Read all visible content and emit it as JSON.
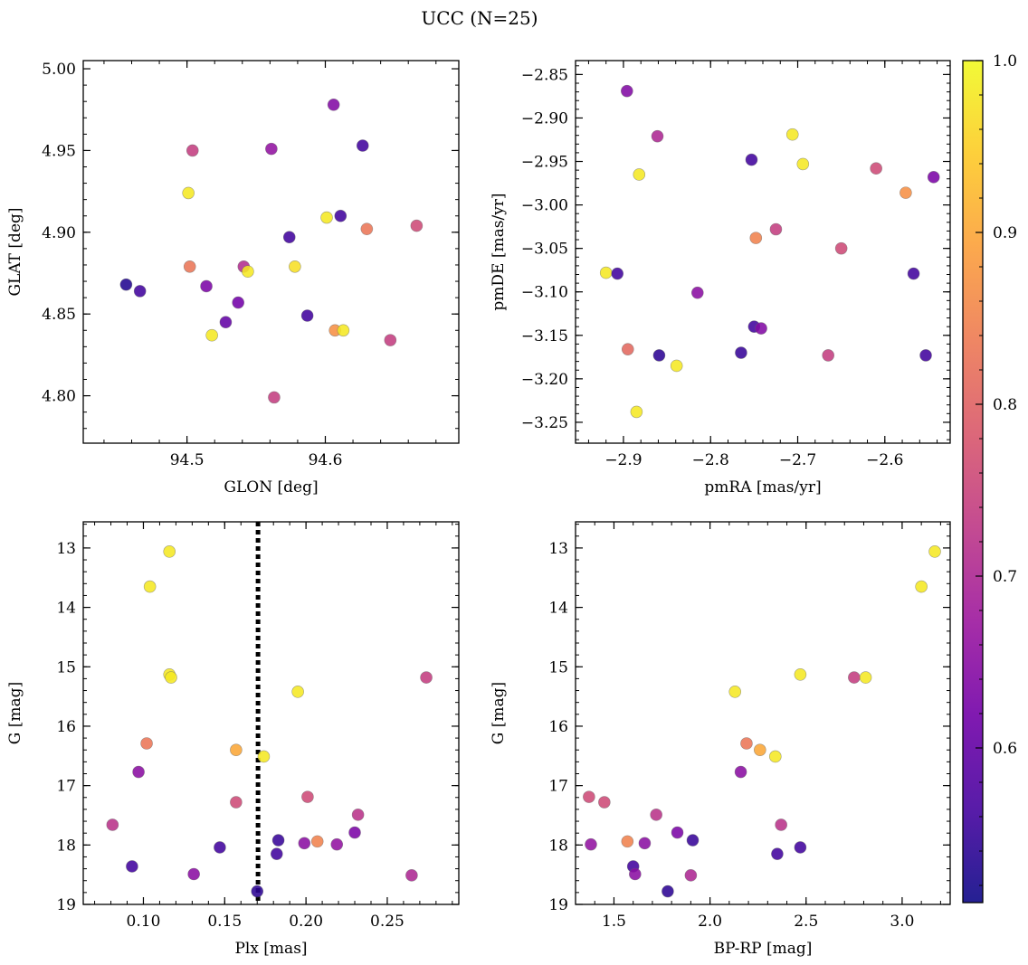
{
  "figure": {
    "title": "UCC (N=25)"
  },
  "colormap": [
    "#0d0887",
    "#46039f",
    "#7201a8",
    "#9c179e",
    "#bd3786",
    "#d8576b",
    "#ed7953",
    "#fb9f3a",
    "#fdca26",
    "#f0f921"
  ],
  "colorbar": {
    "min": 0.51,
    "max": 1.0,
    "ticks": [
      "0.6",
      "0.7",
      "0.8",
      "0.9",
      "1.0"
    ]
  },
  "chart_data": [
    {
      "type": "scatter",
      "xlabel": "GLON [deg]",
      "ylabel": "GLAT [deg]",
      "xlim": [
        94.425,
        94.6965
      ],
      "ylim": [
        4.771,
        5.005
      ],
      "xticks": [
        "94.5",
        "94.6"
      ],
      "yticks": [
        "4.80",
        "4.85",
        "4.90",
        "4.95",
        "5.00"
      ],
      "points": [
        {
          "x": 94.456,
          "y": 4.868,
          "c": 0.53
        },
        {
          "x": 94.466,
          "y": 4.864,
          "c": 0.56
        },
        {
          "x": 94.501,
          "y": 4.924,
          "c": 0.98
        },
        {
          "x": 94.502,
          "y": 4.879,
          "c": 0.83
        },
        {
          "x": 94.504,
          "y": 4.95,
          "c": 0.74
        },
        {
          "x": 94.514,
          "y": 4.867,
          "c": 0.63
        },
        {
          "x": 94.518,
          "y": 4.837,
          "c": 0.98
        },
        {
          "x": 94.528,
          "y": 4.845,
          "c": 0.6
        },
        {
          "x": 94.537,
          "y": 4.857,
          "c": 0.62
        },
        {
          "x": 94.541,
          "y": 4.879,
          "c": 0.71
        },
        {
          "x": 94.544,
          "y": 4.876,
          "c": 0.98
        },
        {
          "x": 94.561,
          "y": 4.951,
          "c": 0.66
        },
        {
          "x": 94.563,
          "y": 4.799,
          "c": 0.74
        },
        {
          "x": 94.574,
          "y": 4.897,
          "c": 0.56
        },
        {
          "x": 94.578,
          "y": 4.879,
          "c": 0.97
        },
        {
          "x": 94.587,
          "y": 4.849,
          "c": 0.56
        },
        {
          "x": 94.601,
          "y": 4.909,
          "c": 0.98
        },
        {
          "x": 94.606,
          "y": 4.978,
          "c": 0.64
        },
        {
          "x": 94.607,
          "y": 4.84,
          "c": 0.87
        },
        {
          "x": 94.611,
          "y": 4.91,
          "c": 0.56
        },
        {
          "x": 94.613,
          "y": 4.84,
          "c": 0.98
        },
        {
          "x": 94.627,
          "y": 4.953,
          "c": 0.56
        },
        {
          "x": 94.63,
          "y": 4.902,
          "c": 0.83
        },
        {
          "x": 94.647,
          "y": 4.834,
          "c": 0.74
        },
        {
          "x": 94.666,
          "y": 4.904,
          "c": 0.76
        }
      ]
    },
    {
      "type": "scatter",
      "xlabel": "pmRA [mas/yr]",
      "ylabel": "pmDE [mas/yr]",
      "xlim": [
        -2.955,
        -2.525
      ],
      "ylim": [
        -3.274,
        -2.834
      ],
      "xticks": [
        "−2.9",
        "−2.8",
        "−2.7",
        "−2.6"
      ],
      "yticks": [
        "−3.25",
        "−3.20",
        "−3.15",
        "−3.10",
        "−3.05",
        "−3.00",
        "−2.95",
        "−2.90",
        "−2.85"
      ],
      "points": [
        {
          "x": -2.92,
          "y": -3.078,
          "c": 0.98
        },
        {
          "x": -2.907,
          "y": -3.079,
          "c": 0.56
        },
        {
          "x": -2.896,
          "y": -2.869,
          "c": 0.64
        },
        {
          "x": -2.895,
          "y": -3.166,
          "c": 0.81
        },
        {
          "x": -2.885,
          "y": -3.238,
          "c": 0.98
        },
        {
          "x": -2.882,
          "y": -2.965,
          "c": 0.98
        },
        {
          "x": -2.861,
          "y": -2.921,
          "c": 0.7
        },
        {
          "x": -2.859,
          "y": -3.173,
          "c": 0.54
        },
        {
          "x": -2.839,
          "y": -3.185,
          "c": 0.98
        },
        {
          "x": -2.815,
          "y": -3.101,
          "c": 0.65
        },
        {
          "x": -2.765,
          "y": -3.17,
          "c": 0.55
        },
        {
          "x": -2.753,
          "y": -2.948,
          "c": 0.56
        },
        {
          "x": -2.75,
          "y": -3.14,
          "c": 0.56
        },
        {
          "x": -2.748,
          "y": -3.038,
          "c": 0.85
        },
        {
          "x": -2.742,
          "y": -3.142,
          "c": 0.64
        },
        {
          "x": -2.725,
          "y": -3.028,
          "c": 0.74
        },
        {
          "x": -2.706,
          "y": -2.919,
          "c": 0.98
        },
        {
          "x": -2.694,
          "y": -2.953,
          "c": 0.98
        },
        {
          "x": -2.665,
          "y": -3.173,
          "c": 0.74
        },
        {
          "x": -2.65,
          "y": -3.05,
          "c": 0.76
        },
        {
          "x": -2.61,
          "y": -2.958,
          "c": 0.76
        },
        {
          "x": -2.576,
          "y": -2.986,
          "c": 0.87
        },
        {
          "x": -2.567,
          "y": -3.079,
          "c": 0.56
        },
        {
          "x": -2.553,
          "y": -3.173,
          "c": 0.56
        },
        {
          "x": -2.544,
          "y": -2.968,
          "c": 0.63
        }
      ]
    },
    {
      "type": "scatter",
      "xlabel": "Plx [mas]",
      "ylabel": "G [mag]",
      "xlim": [
        0.063,
        0.294
      ],
      "ylim": [
        19.0,
        12.56
      ],
      "xticks": [
        "0.10",
        "0.15",
        "0.20",
        "0.25"
      ],
      "yticks": [
        "13",
        "14",
        "15",
        "16",
        "17",
        "18",
        "19"
      ],
      "vline": 0.1705,
      "points": [
        {
          "x": 0.116,
          "y": 13.06,
          "c": 0.98
        },
        {
          "x": 0.104,
          "y": 13.65,
          "c": 0.98
        },
        {
          "x": 0.116,
          "y": 15.13,
          "c": 0.98
        },
        {
          "x": 0.117,
          "y": 15.18,
          "c": 0.98
        },
        {
          "x": 0.195,
          "y": 15.42,
          "c": 0.98
        },
        {
          "x": 0.274,
          "y": 15.18,
          "c": 0.74
        },
        {
          "x": 0.102,
          "y": 16.29,
          "c": 0.83
        },
        {
          "x": 0.157,
          "y": 16.4,
          "c": 0.9
        },
        {
          "x": 0.174,
          "y": 16.51,
          "c": 0.98
        },
        {
          "x": 0.097,
          "y": 16.77,
          "c": 0.65
        },
        {
          "x": 0.157,
          "y": 17.28,
          "c": 0.76
        },
        {
          "x": 0.201,
          "y": 17.19,
          "c": 0.76
        },
        {
          "x": 0.232,
          "y": 17.49,
          "c": 0.72
        },
        {
          "x": 0.081,
          "y": 17.66,
          "c": 0.72
        },
        {
          "x": 0.23,
          "y": 17.79,
          "c": 0.63
        },
        {
          "x": 0.183,
          "y": 17.92,
          "c": 0.55
        },
        {
          "x": 0.199,
          "y": 17.97,
          "c": 0.65
        },
        {
          "x": 0.207,
          "y": 17.94,
          "c": 0.85
        },
        {
          "x": 0.219,
          "y": 17.99,
          "c": 0.66
        },
        {
          "x": 0.147,
          "y": 18.04,
          "c": 0.56
        },
        {
          "x": 0.182,
          "y": 18.15,
          "c": 0.56
        },
        {
          "x": 0.093,
          "y": 18.36,
          "c": 0.56
        },
        {
          "x": 0.131,
          "y": 18.49,
          "c": 0.65
        },
        {
          "x": 0.265,
          "y": 18.51,
          "c": 0.7
        },
        {
          "x": 0.17,
          "y": 18.78,
          "c": 0.54
        }
      ]
    },
    {
      "type": "scatter",
      "xlabel": "BP-RP [mag]",
      "ylabel": "G [mag]",
      "xlim": [
        1.3,
        3.25
      ],
      "ylim": [
        19.0,
        12.56
      ],
      "xticks": [
        "1.5",
        "2.0",
        "2.5",
        "3.0"
      ],
      "yticks": [
        "13",
        "14",
        "15",
        "16",
        "17",
        "18",
        "19"
      ],
      "points": [
        {
          "x": 3.17,
          "y": 13.06,
          "c": 0.98
        },
        {
          "x": 3.1,
          "y": 13.65,
          "c": 0.98
        },
        {
          "x": 2.47,
          "y": 15.13,
          "c": 0.98
        },
        {
          "x": 2.75,
          "y": 15.18,
          "c": 0.74
        },
        {
          "x": 2.81,
          "y": 15.18,
          "c": 0.98
        },
        {
          "x": 2.13,
          "y": 15.42,
          "c": 0.98
        },
        {
          "x": 2.19,
          "y": 16.29,
          "c": 0.83
        },
        {
          "x": 2.26,
          "y": 16.4,
          "c": 0.9
        },
        {
          "x": 2.34,
          "y": 16.51,
          "c": 0.98
        },
        {
          "x": 2.16,
          "y": 16.77,
          "c": 0.65
        },
        {
          "x": 1.37,
          "y": 17.19,
          "c": 0.76
        },
        {
          "x": 1.45,
          "y": 17.28,
          "c": 0.76
        },
        {
          "x": 1.72,
          "y": 17.49,
          "c": 0.72
        },
        {
          "x": 2.37,
          "y": 17.66,
          "c": 0.72
        },
        {
          "x": 1.83,
          "y": 17.79,
          "c": 0.63
        },
        {
          "x": 1.91,
          "y": 17.92,
          "c": 0.55
        },
        {
          "x": 1.57,
          "y": 17.94,
          "c": 0.85
        },
        {
          "x": 1.66,
          "y": 17.97,
          "c": 0.65
        },
        {
          "x": 1.38,
          "y": 17.99,
          "c": 0.66
        },
        {
          "x": 2.47,
          "y": 18.04,
          "c": 0.56
        },
        {
          "x": 2.35,
          "y": 18.15,
          "c": 0.56
        },
        {
          "x": 1.6,
          "y": 18.36,
          "c": 0.56
        },
        {
          "x": 1.61,
          "y": 18.49,
          "c": 0.65
        },
        {
          "x": 1.9,
          "y": 18.51,
          "c": 0.7
        },
        {
          "x": 1.78,
          "y": 18.78,
          "c": 0.54
        }
      ]
    }
  ]
}
